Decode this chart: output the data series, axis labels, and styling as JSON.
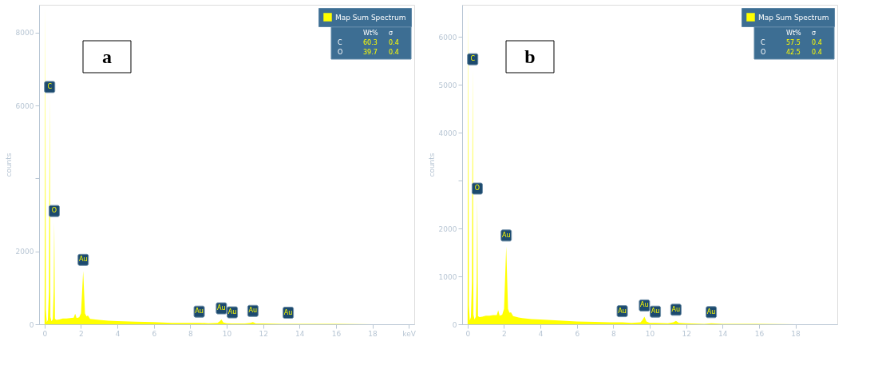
{
  "chart_data": [
    {
      "type": "area",
      "ylabel": "counts",
      "xlim": [
        -0.3,
        20.3
      ],
      "ylim": [
        0,
        8760
      ],
      "xticks": [
        0,
        2,
        4,
        6,
        8,
        10,
        12,
        14,
        16,
        18,
        {
          "value": 20,
          "label": "keV"
        }
      ],
      "yticks": [
        0,
        2000,
        {
          "value": 4000,
          "label": null
        },
        6000,
        8000
      ],
      "x": [
        0,
        0.02,
        0.04,
        0.07,
        0.12,
        0.18,
        0.24,
        0.28,
        0.32,
        0.38,
        0.45,
        0.5,
        0.53,
        0.57,
        0.65,
        0.8,
        1.0,
        1.2,
        1.4,
        1.6,
        1.68,
        1.76,
        1.9,
        2.0,
        2.12,
        2.22,
        2.3,
        2.38,
        2.5,
        2.8,
        3.0,
        3.5,
        4.0,
        5.0,
        6.0,
        7.0,
        8.0,
        8.49,
        9.0,
        9.5,
        9.62,
        9.71,
        9.82,
        10.0,
        10.31,
        11.0,
        11.3,
        11.44,
        11.6,
        12.0,
        13.0,
        13.38,
        14.0,
        16.0,
        18.0,
        20.0
      ],
      "series": [
        {
          "name": "Map Sum Spectrum",
          "color": "#ffff00",
          "values": [
            200,
            3000,
            8700,
            400,
            60,
            120,
            900,
            6200,
            200,
            80,
            140,
            900,
            2800,
            150,
            120,
            130,
            160,
            160,
            170,
            180,
            290,
            170,
            190,
            300,
            1460,
            300,
            220,
            240,
            150,
            130,
            120,
            100,
            90,
            70,
            60,
            40,
            40,
            40,
            30,
            40,
            80,
            130,
            50,
            30,
            20,
            20,
            40,
            60,
            20,
            20,
            10,
            10,
            10,
            10,
            0,
            0
          ]
        }
      ],
      "legend": "top right",
      "annotations": [
        "a",
        "Wt%",
        "σ",
        "C",
        "60.3",
        "0.4",
        "O",
        "39.7",
        "0.4",
        {
          "text": "C",
          "x": 0.28,
          "y": 6200
        },
        {
          "text": "O",
          "x": 0.53,
          "y": 2800
        },
        {
          "text": "Au",
          "x": 2.12,
          "y": 1460
        },
        {
          "text": "Au",
          "x": 8.49,
          "y": 40
        },
        {
          "text": "Au",
          "x": 9.71,
          "y": 130
        },
        {
          "text": "Au",
          "x": 10.31,
          "y": 20
        },
        {
          "text": "Au",
          "x": 11.44,
          "y": 60
        },
        {
          "text": "Au",
          "x": 13.38,
          "y": 10
        }
      ]
    },
    {
      "type": "area",
      "ylabel": "counts",
      "xlim": [
        -0.3,
        20.3
      ],
      "ylim": [
        0,
        6670
      ],
      "xticks": [
        0,
        2,
        4,
        6,
        8,
        10,
        12,
        14,
        16,
        18
      ],
      "yticks": [
        0,
        1000,
        2000,
        {
          "value": 3000,
          "label": null
        },
        4000,
        5000,
        6000
      ],
      "x": [
        0,
        0.02,
        0.04,
        0.07,
        0.12,
        0.18,
        0.24,
        0.28,
        0.32,
        0.38,
        0.45,
        0.5,
        0.53,
        0.57,
        0.65,
        0.8,
        1.0,
        1.2,
        1.4,
        1.6,
        1.68,
        1.76,
        1.9,
        2.0,
        2.12,
        2.22,
        2.3,
        2.38,
        2.5,
        2.8,
        3.0,
        3.5,
        4.0,
        5.0,
        6.0,
        7.0,
        8.0,
        8.49,
        9.0,
        9.5,
        9.62,
        9.71,
        9.82,
        10.0,
        10.31,
        11.0,
        11.3,
        11.44,
        11.6,
        12.0,
        13.0,
        13.38,
        14.0,
        16.0,
        18.0,
        20.0
      ],
      "series": [
        {
          "name": "Map Sum Spectrum",
          "color": "#ffff00",
          "values": [
            200,
            3000,
            6650,
            400,
            80,
            150,
            900,
            5300,
            200,
            100,
            160,
            900,
            2600,
            170,
            150,
            160,
            180,
            180,
            190,
            190,
            290,
            180,
            200,
            320,
            1620,
            320,
            240,
            250,
            170,
            140,
            130,
            110,
            100,
            80,
            60,
            50,
            40,
            40,
            30,
            40,
            100,
            160,
            60,
            30,
            30,
            20,
            40,
            70,
            30,
            20,
            10,
            20,
            10,
            10,
            0,
            0
          ]
        }
      ],
      "legend": "top right",
      "annotations": [
        "b",
        "Wt%",
        "σ",
        "C",
        "57.5",
        "0.4",
        "O",
        "42.5",
        "0.4",
        {
          "text": "C",
          "x": 0.28,
          "y": 5300
        },
        {
          "text": "O",
          "x": 0.53,
          "y": 2600
        },
        {
          "text": "Au",
          "x": 2.12,
          "y": 1620
        },
        {
          "text": "Au",
          "x": 8.49,
          "y": 40
        },
        {
          "text": "Au",
          "x": 9.71,
          "y": 160
        },
        {
          "text": "Au",
          "x": 10.31,
          "y": 30
        },
        {
          "text": "Au",
          "x": 11.44,
          "y": 70
        },
        {
          "text": "Au",
          "x": 13.38,
          "y": 20
        }
      ]
    }
  ]
}
